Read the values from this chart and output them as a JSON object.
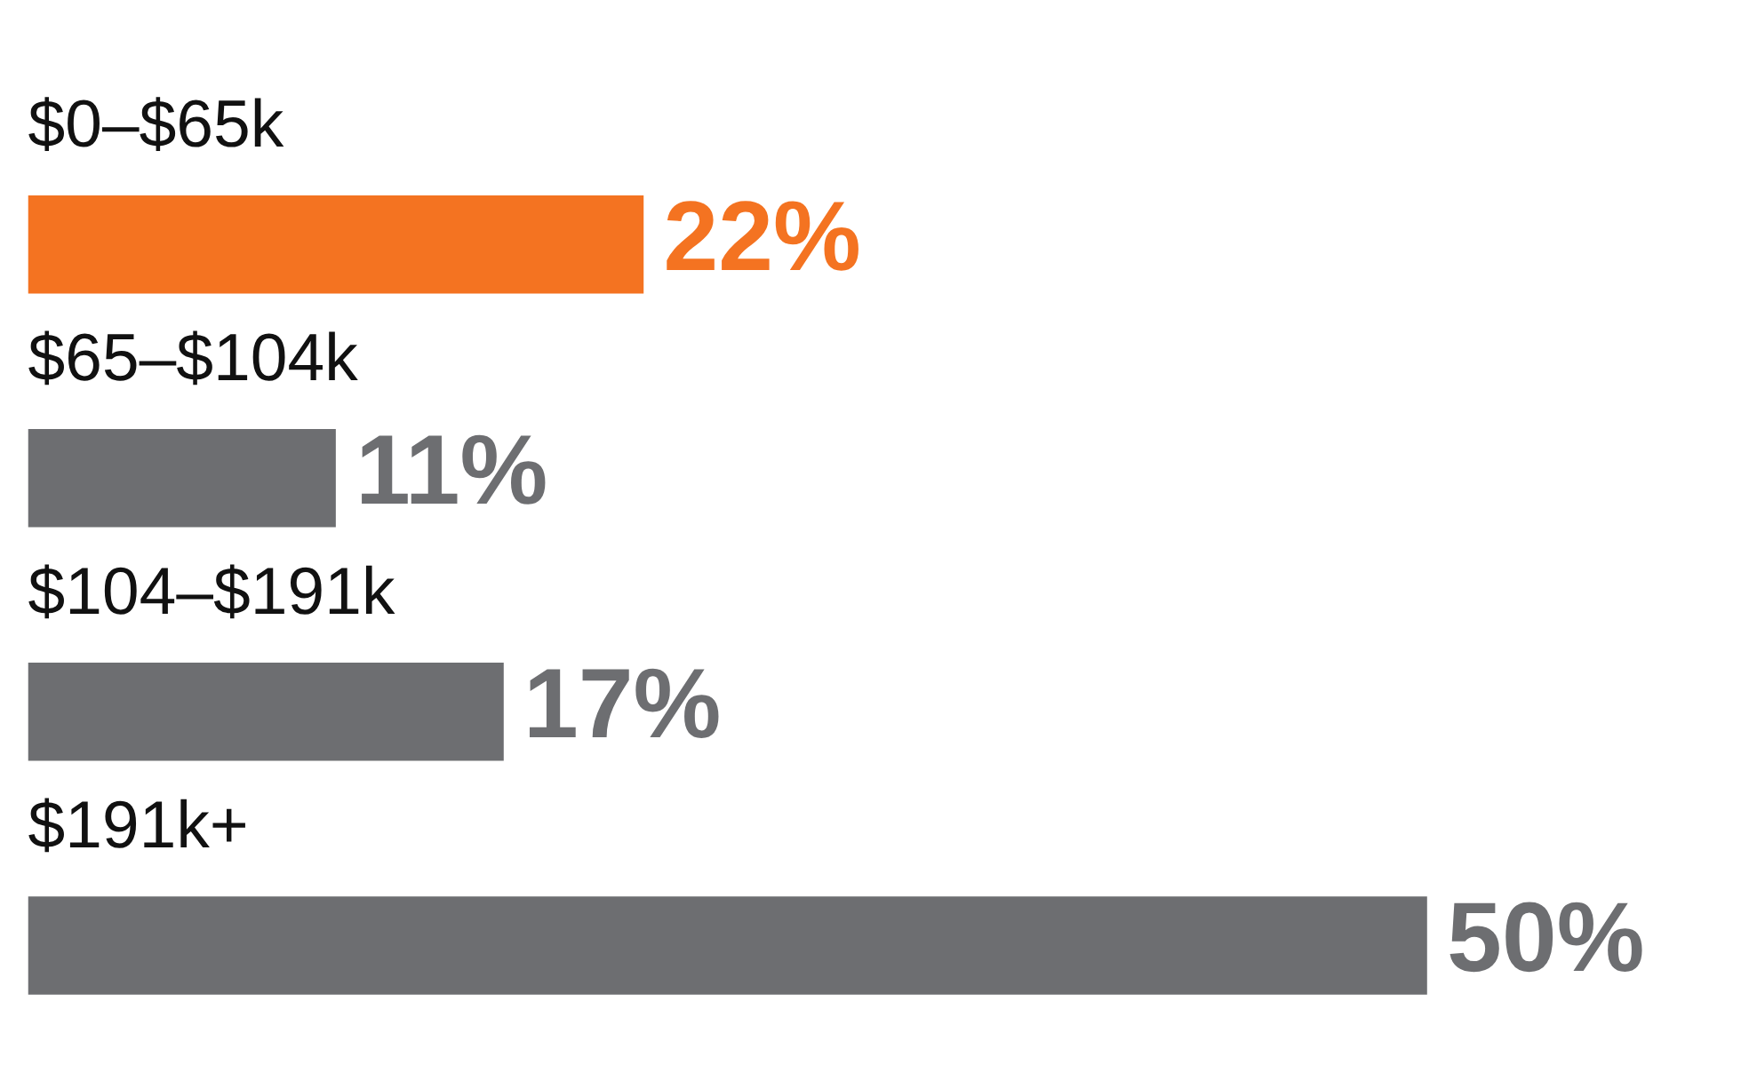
{
  "chart_data": {
    "type": "bar",
    "orientation": "horizontal",
    "categories": [
      "$0–$65k",
      "$65–$104k",
      "$104–$191k",
      "$191k+"
    ],
    "values": [
      22,
      11,
      17,
      50
    ],
    "colors": [
      "#f47321",
      "#6d6e71",
      "#6d6e71",
      "#6d6e71"
    ],
    "value_labels": [
      "22%",
      "11%",
      "17%",
      "50%"
    ],
    "legend": false
  }
}
